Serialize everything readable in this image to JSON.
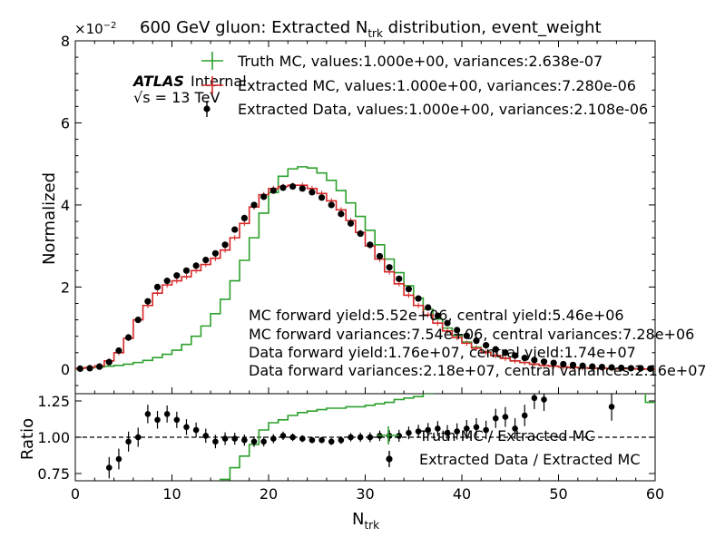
{
  "chart_data": {
    "type": "line",
    "title_main": "600 GeV gluon: Extracted N",
    "title_sub": "trk",
    "title_tail": " distribution, event_weight",
    "exponent_base": "×10",
    "exponent_power": "−2",
    "xlabel_main": "N",
    "xlabel_sub": "trk",
    "ylabel_top": "Normalized",
    "ylabel_bottom": "Ratio",
    "xlim": [
      0,
      60
    ],
    "ylim_top": [
      -0.006,
      0.08
    ],
    "ylim_bottom": [
      0.7,
      1.3
    ],
    "x_ticks": [
      "0",
      "10",
      "20",
      "30",
      "40",
      "50",
      "60"
    ],
    "y_ticks_top": [
      "0",
      "2",
      "4",
      "6",
      "8"
    ],
    "y_ticks_bottom": [
      "0.75",
      "1.00",
      "1.25"
    ],
    "atlas_label": "ATLAS",
    "internal_label": "Internal",
    "energy_label": "√s =  13 TeV",
    "legend_top": [
      "Truth MC, values:1.000e+00, variances:2.638e-07",
      "Extracted MC, values:1.000e+00, variances:7.280e-06",
      "Extracted Data, values:1.000e+00, variances:2.108e-06"
    ],
    "legend_bottom": [
      "Truth MC / Extracted MC",
      "Extracted Data / Extracted MC"
    ],
    "annotations": [
      "MC forward yield:5.52e+06, central yield:5.46e+06",
      "MC forward variances:7.54e+06, central variances:7.28e+06",
      "Data forward yield:1.76e+07, central yield:1.74e+07",
      "Data forward variances:2.18e+07, central variances:2.16e+07"
    ],
    "colors": {
      "truth": "#2ca02c",
      "extracted_mc": "#d62728",
      "data": "#000000"
    },
    "bin_edges": [
      0,
      1,
      2,
      3,
      4,
      5,
      6,
      7,
      8,
      9,
      10,
      11,
      12,
      13,
      14,
      15,
      16,
      17,
      18,
      19,
      20,
      21,
      22,
      23,
      24,
      25,
      26,
      27,
      28,
      29,
      30,
      31,
      32,
      33,
      34,
      35,
      36,
      37,
      38,
      39,
      40,
      41,
      42,
      43,
      44,
      45,
      46,
      47,
      48,
      49,
      50,
      51,
      52,
      53,
      54,
      55,
      56,
      57,
      58,
      59,
      60
    ],
    "series": [
      {
        "name": "Truth MC",
        "values": [
          0.0002,
          0.0003,
          0.0005,
          0.0007,
          0.0009,
          0.0012,
          0.0016,
          0.0021,
          0.0028,
          0.0036,
          0.0046,
          0.006,
          0.008,
          0.0105,
          0.0135,
          0.017,
          0.0215,
          0.0265,
          0.032,
          0.038,
          0.043,
          0.047,
          0.0488,
          0.0493,
          0.049,
          0.0478,
          0.046,
          0.0435,
          0.0405,
          0.0372,
          0.0338,
          0.0303,
          0.0268,
          0.0235,
          0.0203,
          0.0173,
          0.0146,
          0.0122,
          0.01,
          0.0082,
          0.0066,
          0.0053,
          0.0042,
          0.0033,
          0.0026,
          0.002,
          0.0016,
          0.0012,
          0.0009,
          0.0007,
          0.0005,
          0.0004,
          0.0003,
          0.0002,
          0.0002,
          0.0001,
          0.0001,
          0.0001,
          0.0,
          0.0
        ]
      },
      {
        "name": "Extracted MC",
        "values": [
          0.0002,
          0.0004,
          0.0008,
          0.002,
          0.004,
          0.0075,
          0.012,
          0.0155,
          0.0185,
          0.0205,
          0.0215,
          0.0225,
          0.024,
          0.0255,
          0.027,
          0.029,
          0.032,
          0.0355,
          0.0395,
          0.0425,
          0.044,
          0.0445,
          0.0448,
          0.0448,
          0.044,
          0.0428,
          0.041,
          0.0388,
          0.0362,
          0.0333,
          0.03,
          0.0268,
          0.0237,
          0.0208,
          0.018,
          0.0155,
          0.0132,
          0.0112,
          0.0093,
          0.0077,
          0.0063,
          0.0051,
          0.0041,
          0.0033,
          0.0026,
          0.002,
          0.0016,
          0.0012,
          0.0009,
          0.0007,
          0.0005,
          0.0004,
          0.0003,
          0.0002,
          0.0002,
          0.0001,
          0.0001,
          0.0001,
          0.0,
          0.0
        ]
      },
      {
        "name": "Extracted Data",
        "x": [
          0.5,
          1.5,
          2.5,
          3.5,
          4.5,
          5.5,
          6.5,
          7.5,
          8.5,
          9.5,
          10.5,
          11.5,
          12.5,
          13.5,
          14.5,
          15.5,
          16.5,
          17.5,
          18.5,
          19.5,
          20.5,
          21.5,
          22.5,
          23.5,
          24.5,
          25.5,
          26.5,
          27.5,
          28.5,
          29.5,
          30.5,
          31.5,
          32.5,
          33.5,
          34.5,
          35.5,
          36.5,
          37.5,
          38.5,
          39.5,
          40.5,
          41.5,
          42.5,
          43.5,
          44.5,
          45.5,
          46.5,
          47.5,
          48.5,
          49.5,
          50.5,
          51.5,
          52.5,
          53.5,
          54.5,
          55.5,
          56.5,
          57.5,
          58.5,
          59.5
        ],
        "values": [
          0.0001,
          0.0002,
          0.0006,
          0.0017,
          0.0045,
          0.0077,
          0.012,
          0.0165,
          0.02,
          0.0215,
          0.0228,
          0.024,
          0.0252,
          0.0266,
          0.0282,
          0.0303,
          0.034,
          0.0368,
          0.04,
          0.042,
          0.0435,
          0.0442,
          0.0445,
          0.044,
          0.0431,
          0.0418,
          0.04,
          0.0378,
          0.0355,
          0.033,
          0.0303,
          0.0275,
          0.0248,
          0.022,
          0.0195,
          0.0172,
          0.015,
          0.013,
          0.0112,
          0.0095,
          0.0081,
          0.0069,
          0.0058,
          0.0048,
          0.004,
          0.0033,
          0.0027,
          0.0022,
          0.0018,
          0.0015,
          0.0012,
          0.001,
          0.0008,
          0.0006,
          0.0005,
          0.0004,
          0.0003,
          0.0002,
          0.0002,
          0.0001
        ]
      }
    ],
    "ratio_series": [
      {
        "name": "Truth MC / Extracted MC",
        "values": [
          null,
          null,
          null,
          null,
          null,
          null,
          null,
          null,
          null,
          null,
          null,
          null,
          null,
          0.51,
          0.62,
          0.71,
          0.79,
          0.87,
          0.95,
          1.05,
          1.1,
          1.12,
          1.15,
          1.17,
          1.18,
          1.19,
          1.2,
          1.2,
          1.21,
          1.21,
          1.22,
          1.23,
          1.24,
          1.26,
          1.27,
          1.28,
          1.3,
          1.31,
          1.33,
          1.34,
          1.36,
          1.38,
          1.4,
          1.42,
          1.44,
          1.46,
          1.48,
          1.5,
          1.52,
          1.54,
          1.56,
          1.58,
          1.6,
          1.62,
          1.64,
          1.66,
          1.68,
          1.7,
          1.72,
          1.24
        ]
      },
      {
        "name": "Extracted Data / Extracted MC",
        "x": [
          3.5,
          4.5,
          5.5,
          6.5,
          7.5,
          8.5,
          9.5,
          10.5,
          11.5,
          12.5,
          13.5,
          14.5,
          15.5,
          16.5,
          17.5,
          18.5,
          19.5,
          20.5,
          21.5,
          22.5,
          23.5,
          24.5,
          25.5,
          26.5,
          27.5,
          28.5,
          29.5,
          30.5,
          31.5,
          32.5,
          33.5,
          34.5,
          35.5,
          36.5,
          37.5,
          38.5,
          39.5,
          40.5,
          41.5,
          42.5,
          43.5,
          44.5,
          45.5,
          46.5,
          47.5,
          48.5,
          55.5
        ],
        "values": [
          0.79,
          0.85,
          0.97,
          1.0,
          1.16,
          1.12,
          1.16,
          1.12,
          1.07,
          1.05,
          1.01,
          0.97,
          0.99,
          0.99,
          0.98,
          0.97,
          0.97,
          0.99,
          1.01,
          1.0,
          0.99,
          0.98,
          0.98,
          0.97,
          0.98,
          1.0,
          1.0,
          1.0,
          1.01,
          1.01,
          1.01,
          1.03,
          1.04,
          1.05,
          1.06,
          1.03,
          1.04,
          1.06,
          1.07,
          1.05,
          1.13,
          1.14,
          1.06,
          1.15,
          1.27,
          1.26,
          1.21
        ]
      }
    ]
  }
}
